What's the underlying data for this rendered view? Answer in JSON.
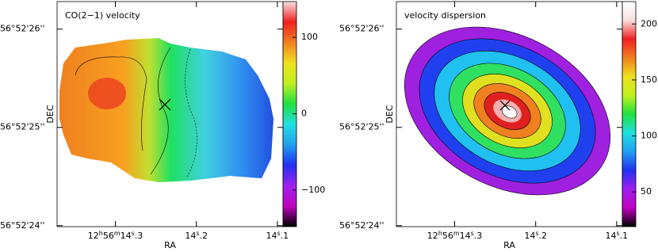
{
  "chart_data": [
    {
      "type": "image",
      "title": "CO(2−1) velocity",
      "xlabel": "RA",
      "ylabel": "DEC",
      "xlim": [
        14.372,
        14.093
      ],
      "ylim": [
        23.99,
        26.28
      ],
      "xticks": [
        {
          "value": 14.3,
          "label": "12h56m14s.3"
        },
        {
          "value": 14.2,
          "label": "14s.2"
        },
        {
          "value": 14.1,
          "label": "14s.1"
        }
      ],
      "yticks": [
        {
          "value": 26,
          "label": "56°52'26''"
        },
        {
          "value": 25,
          "label": "56°52'25''"
        },
        {
          "value": 24,
          "label": "56°52'24''"
        }
      ],
      "zlim": [
        -148,
        147
      ],
      "zticks": [
        {
          "value": -100,
          "label": "−100"
        },
        0,
        100
      ],
      "colormap": [
        "#000000",
        "#c000c0",
        "#a020f0",
        "#2030f0",
        "#20a0f0",
        "#20e0e0",
        "#20e040",
        "#c0f020",
        "#f0e020",
        "#f08020",
        "#f02020",
        "#f8e0e0"
      ]
    },
    {
      "type": "image",
      "title": "velocity dispersion",
      "xlabel": "RA",
      "ylabel": "DEC",
      "xlim": [
        14.372,
        14.093
      ],
      "ylim": [
        23.99,
        26.28
      ],
      "xticks": [
        {
          "value": 14.3,
          "label": "12h56m14s.3"
        },
        {
          "value": 14.2,
          "label": "14s.2"
        },
        {
          "value": 14.1,
          "label": "14s.1"
        }
      ],
      "yticks": [
        {
          "value": 26,
          "label": "56°52'26''"
        },
        {
          "value": 25,
          "label": "56°52'25''"
        },
        {
          "value": 24,
          "label": "56°52'24''"
        }
      ],
      "zlim": [
        19,
        220
      ],
      "zticks": [
        50,
        100,
        150,
        200
      ],
      "colormap": [
        "#000000",
        "#c000c0",
        "#a020f0",
        "#2030f0",
        "#20a0f0",
        "#20e0e0",
        "#20e040",
        "#c0f020",
        "#f0e020",
        "#f08020",
        "#f02020",
        "#f8e0e0",
        "#ffffff"
      ]
    }
  ]
}
